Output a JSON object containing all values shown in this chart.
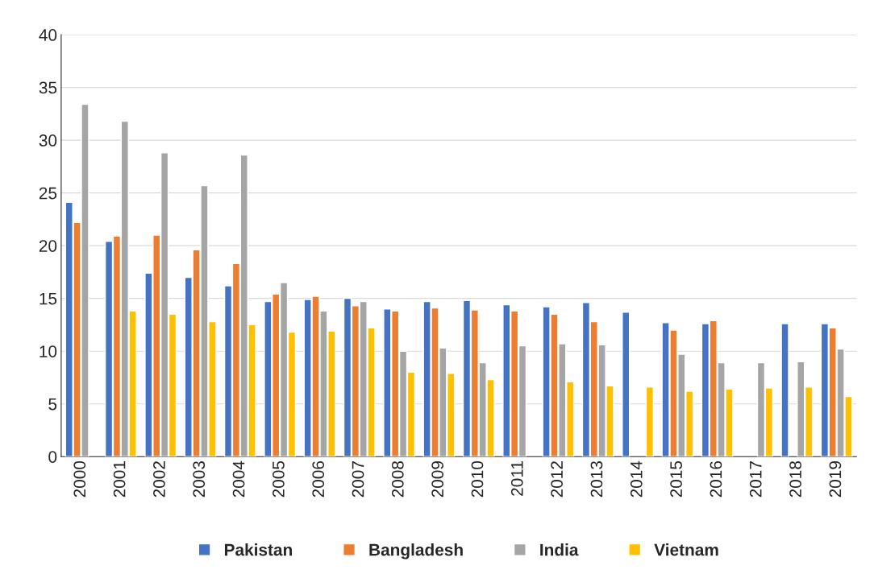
{
  "chart_data": {
    "type": "bar",
    "categories": [
      "2000",
      "2001",
      "2002",
      "2003",
      "2004",
      "2005",
      "2006",
      "2007",
      "2008",
      "2009",
      "2010",
      "2011",
      "2012",
      "2013",
      "2014",
      "2015",
      "2016",
      "2017",
      "2018",
      "2019"
    ],
    "series": [
      {
        "name": "Pakistan",
        "color": "#4472c4",
        "values": [
          24.1,
          20.4,
          17.4,
          17.0,
          16.2,
          14.7,
          14.9,
          15.0,
          14.0,
          14.7,
          14.8,
          14.4,
          14.2,
          14.6,
          13.7,
          12.7,
          12.6,
          null,
          12.6,
          12.6
        ]
      },
      {
        "name": "Bangladesh",
        "color": "#ed7d31",
        "values": [
          22.2,
          20.9,
          21.0,
          19.6,
          18.3,
          15.4,
          15.2,
          14.3,
          13.8,
          14.1,
          13.9,
          13.8,
          13.5,
          12.8,
          null,
          12.0,
          12.9,
          null,
          null,
          12.2
        ]
      },
      {
        "name": "India",
        "color": "#a5a5a5",
        "values": [
          33.4,
          31.8,
          28.8,
          25.7,
          28.6,
          16.5,
          13.8,
          14.7,
          10.0,
          10.3,
          8.9,
          10.5,
          10.7,
          10.6,
          null,
          9.7,
          8.9,
          8.9,
          9.0,
          10.2
        ]
      },
      {
        "name": "Vietnam",
        "color": "#ffc000",
        "values": [
          null,
          13.8,
          13.5,
          12.8,
          12.5,
          11.8,
          11.9,
          12.2,
          8.0,
          7.9,
          7.3,
          null,
          7.1,
          6.7,
          6.6,
          6.2,
          6.4,
          6.5,
          6.6,
          5.7
        ]
      }
    ],
    "ylim": [
      0,
      40
    ],
    "yticks": [
      0,
      5,
      10,
      15,
      20,
      25,
      30,
      35,
      40
    ],
    "grid": "y",
    "legend": "bottom"
  }
}
